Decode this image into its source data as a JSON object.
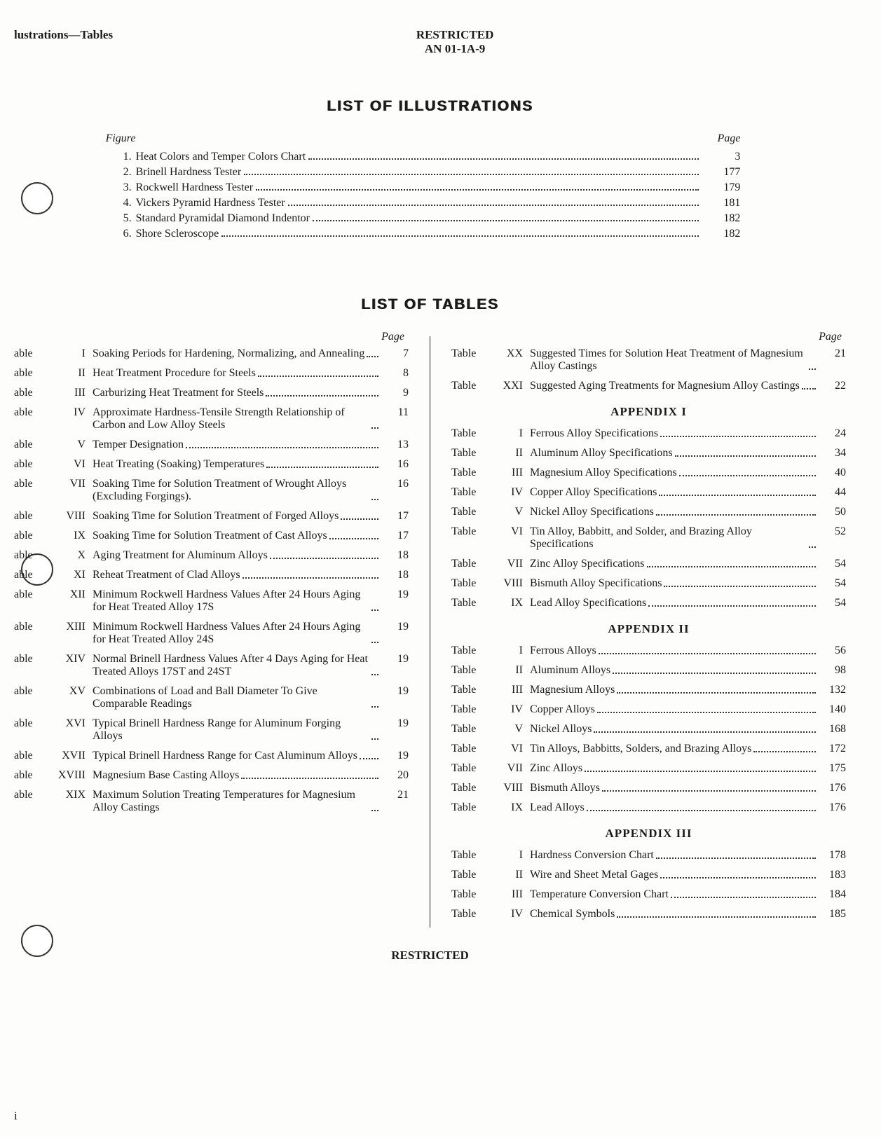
{
  "header": {
    "left": "lustrations—Tables",
    "center_line1": "RESTRICTED",
    "center_line2": "AN 01-1A-9"
  },
  "illus_section_title": "LIST OF ILLUSTRATIONS",
  "illus_head_figure": "Figure",
  "illus_head_page": "Page",
  "illustrations": [
    {
      "n": "1.",
      "t": "Heat Colors and Temper Colors Chart",
      "p": "3"
    },
    {
      "n": "2.",
      "t": "Brinell Hardness Tester",
      "p": "177"
    },
    {
      "n": "3.",
      "t": "Rockwell Hardness Tester",
      "p": "179"
    },
    {
      "n": "4.",
      "t": "Vickers Pyramid Hardness Tester",
      "p": "181"
    },
    {
      "n": "5.",
      "t": "Standard Pyramidal Diamond Indentor",
      "p": "182"
    },
    {
      "n": "6.",
      "t": "Shore Scleroscope",
      "p": "182"
    }
  ],
  "tables_section_title": "LIST OF TABLES",
  "page_label": "Page",
  "left_tables": [
    {
      "lbl": "able",
      "r": "I",
      "t": "Soaking Periods for Hardening, Normalizing, and Annealing",
      "p": "7"
    },
    {
      "lbl": "able",
      "r": "II",
      "t": "Heat Treatment Procedure for Steels",
      "p": "8"
    },
    {
      "lbl": "able",
      "r": "III",
      "t": "Carburizing Heat Treatment for Steels",
      "p": "9"
    },
    {
      "lbl": "able",
      "r": "IV",
      "t": "Approximate Hardness-Tensile Strength Relationship of Carbon and Low Alloy Steels",
      "p": "11"
    },
    {
      "lbl": "able",
      "r": "V",
      "t": "Temper Designation",
      "p": "13"
    },
    {
      "lbl": "able",
      "r": "VI",
      "t": "Heat Treating (Soaking) Temperatures",
      "p": "16"
    },
    {
      "lbl": "able",
      "r": "VII",
      "t": "Soaking Time for Solution Treatment of Wrought Alloys (Excluding Forgings).",
      "p": "16"
    },
    {
      "lbl": "able",
      "r": "VIII",
      "t": "Soaking Time for Solution Treatment of Forged Alloys",
      "p": "17"
    },
    {
      "lbl": "able",
      "r": "IX",
      "t": "Soaking Time for Solution Treatment of Cast Alloys",
      "p": "17"
    },
    {
      "lbl": "able",
      "r": "X",
      "t": "Aging Treatment for Aluminum Alloys",
      "p": "18"
    },
    {
      "lbl": "able",
      "r": "XI",
      "t": "Reheat Treatment of Clad Alloys",
      "p": "18"
    },
    {
      "lbl": "able",
      "r": "XII",
      "t": "Minimum Rockwell Hardness Values After 24 Hours Aging for Heat Treated Alloy 17S",
      "p": "19"
    },
    {
      "lbl": "able",
      "r": "XIII",
      "t": "Minimum Rockwell Hardness Values After 24 Hours Aging for Heat Treated Alloy 24S",
      "p": "19"
    },
    {
      "lbl": "able",
      "r": "XIV",
      "t": "Normal Brinell Hardness Values After 4 Days Aging for Heat Treated Alloys 17ST and 24ST",
      "p": "19"
    },
    {
      "lbl": "able",
      "r": "XV",
      "t": "Combinations of Load and Ball Diameter To Give Comparable Readings",
      "p": "19"
    },
    {
      "lbl": "able",
      "r": "XVI",
      "t": "Typical Brinell Hardness Range for Aluminum Forging Alloys",
      "p": "19"
    },
    {
      "lbl": "able",
      "r": "XVII",
      "t": "Typical Brinell Hardness Range for Cast Aluminum Alloys",
      "p": "19"
    },
    {
      "lbl": "able",
      "r": "XVIII",
      "t": "Magnesium Base Casting Alloys",
      "p": "20"
    },
    {
      "lbl": "able",
      "r": "XIX",
      "t": "Maximum Solution Treating Temperatures for Magnesium Alloy Castings",
      "p": "21"
    }
  ],
  "right_top": [
    {
      "lbl": "Table",
      "r": "XX",
      "t": "Suggested Times for Solution Heat Treatment of Magnesium Alloy Castings",
      "p": "21"
    },
    {
      "lbl": "Table",
      "r": "XXI",
      "t": "Suggested Aging Treatments for Magnesium Alloy Castings",
      "p": "22"
    }
  ],
  "appendix1_title": "APPENDIX I",
  "appendix1": [
    {
      "lbl": "Table",
      "r": "I",
      "t": "Ferrous Alloy Specifications",
      "p": "24"
    },
    {
      "lbl": "Table",
      "r": "II",
      "t": "Aluminum Alloy Specifications",
      "p": "34"
    },
    {
      "lbl": "Table",
      "r": "III",
      "t": "Magnesium Alloy Specifications",
      "p": "40"
    },
    {
      "lbl": "Table",
      "r": "IV",
      "t": "Copper Alloy Specifications",
      "p": "44"
    },
    {
      "lbl": "Table",
      "r": "V",
      "t": "Nickel Alloy Specifications",
      "p": "50"
    },
    {
      "lbl": "Table",
      "r": "VI",
      "t": "Tin Alloy, Babbitt, and Solder, and Brazing Alloy Specifications",
      "p": "52"
    },
    {
      "lbl": "Table",
      "r": "VII",
      "t": "Zinc Alloy Specifications",
      "p": "54"
    },
    {
      "lbl": "Table",
      "r": "VIII",
      "t": "Bismuth Alloy Specifications",
      "p": "54"
    },
    {
      "lbl": "Table",
      "r": "IX",
      "t": "Lead Alloy Specifications",
      "p": "54"
    }
  ],
  "appendix2_title": "APPENDIX II",
  "appendix2": [
    {
      "lbl": "Table",
      "r": "I",
      "t": "Ferrous Alloys",
      "p": "56"
    },
    {
      "lbl": "Table",
      "r": "II",
      "t": "Aluminum Alloys",
      "p": "98"
    },
    {
      "lbl": "Table",
      "r": "III",
      "t": "Magnesium Alloys",
      "p": "132"
    },
    {
      "lbl": "Table",
      "r": "IV",
      "t": "Copper Alloys",
      "p": "140"
    },
    {
      "lbl": "Table",
      "r": "V",
      "t": "Nickel Alloys",
      "p": "168"
    },
    {
      "lbl": "Table",
      "r": "VI",
      "t": "Tin Alloys, Babbitts, Solders, and Brazing Alloys",
      "p": "172"
    },
    {
      "lbl": "Table",
      "r": "VII",
      "t": "Zinc Alloys",
      "p": "175"
    },
    {
      "lbl": "Table",
      "r": "VIII",
      "t": "Bismuth Alloys",
      "p": "176"
    },
    {
      "lbl": "Table",
      "r": "IX",
      "t": "Lead Alloys",
      "p": "176"
    }
  ],
  "appendix3_title": "APPENDIX III",
  "appendix3": [
    {
      "lbl": "Table",
      "r": "I",
      "t": "Hardness Conversion Chart",
      "p": "178"
    },
    {
      "lbl": "Table",
      "r": "II",
      "t": "Wire and Sheet Metal Gages",
      "p": "183"
    },
    {
      "lbl": "Table",
      "r": "III",
      "t": "Temperature Conversion Chart",
      "p": "184"
    },
    {
      "lbl": "Table",
      "r": "IV",
      "t": "Chemical Symbols",
      "p": "185"
    }
  ],
  "footer": "RESTRICTED",
  "page_roman": "i"
}
